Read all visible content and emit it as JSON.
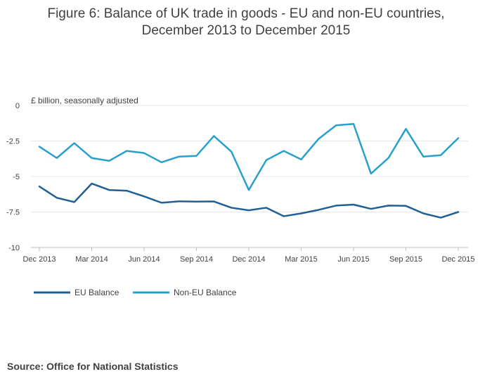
{
  "title_line1": "Figure 6: Balance of UK trade in goods - EU and non-EU countries,",
  "title_line2": "December 2013 to December 2015",
  "source": "Source: Office for National Statistics",
  "colors": {
    "eu": "#206095",
    "non_eu": "#27a0cc",
    "grid": "#e6e6e6",
    "axis": "#bfbfbf",
    "text": "#414042"
  },
  "chart_data": {
    "type": "line",
    "ylabel": "£ billion, seasonally adjusted",
    "xlabel": "",
    "ylim": [
      -10,
      0
    ],
    "yticks": [
      0,
      -2.5,
      -5,
      -7.5,
      -10
    ],
    "ytick_labels": [
      "0",
      "-2.5",
      "-5",
      "-7.5",
      "-10"
    ],
    "x": [
      "Dec 2013",
      "Jan 2014",
      "Feb 2014",
      "Mar 2014",
      "Apr 2014",
      "May 2014",
      "Jun 2014",
      "Jul 2014",
      "Aug 2014",
      "Sep 2014",
      "Oct 2014",
      "Nov 2014",
      "Dec 2014",
      "Jan 2015",
      "Feb 2015",
      "Mar 2015",
      "Apr 2015",
      "May 2015",
      "Jun 2015",
      "Jul 2015",
      "Aug 2015",
      "Sep 2015",
      "Oct 2015",
      "Nov 2015",
      "Dec 2015"
    ],
    "xtick_labels": [
      "Dec 2013",
      "Mar 2014",
      "Jun 2014",
      "Sep 2014",
      "Dec 2014",
      "Mar 2015",
      "Jun 2015",
      "Sep 2015",
      "Dec 2015"
    ],
    "xtick_indices": [
      0,
      3,
      6,
      9,
      12,
      15,
      18,
      21,
      24
    ],
    "series": [
      {
        "name": "EU Balance",
        "values": [
          -5.7,
          -6.5,
          -6.8,
          -5.5,
          -5.95,
          -6.0,
          -6.4,
          -6.85,
          -6.75,
          -6.77,
          -6.76,
          -7.2,
          -7.38,
          -7.2,
          -7.8,
          -7.6,
          -7.35,
          -7.05,
          -6.98,
          -7.28,
          -7.05,
          -7.07,
          -7.6,
          -7.9,
          -7.5
        ]
      },
      {
        "name": "Non-EU Balance",
        "values": [
          -2.9,
          -3.7,
          -2.65,
          -3.7,
          -3.9,
          -3.2,
          -3.35,
          -4.0,
          -3.6,
          -3.55,
          -2.15,
          -3.25,
          -5.95,
          -3.85,
          -3.2,
          -3.8,
          -2.35,
          -1.4,
          -1.3,
          -4.8,
          -3.7,
          -1.65,
          -3.6,
          -3.5,
          -2.3
        ]
      }
    ],
    "legend_position": "bottom-left"
  }
}
